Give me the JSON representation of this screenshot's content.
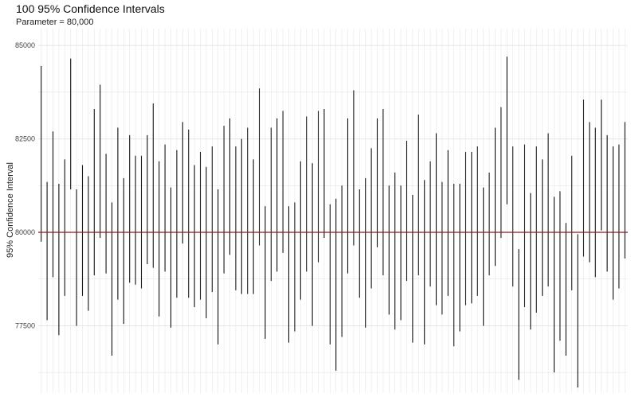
{
  "chart_data": {
    "type": "errorbar",
    "title": "100 95% Confidence Intervals",
    "subtitle": "Parameter = 80,000",
    "ylabel": "95% Confidence Interval",
    "xlabel": "",
    "parameter": 80000,
    "ylim": [
      75700,
      85450
    ],
    "yticks": [
      77500,
      80000,
      82500,
      85000
    ],
    "ytick_labels": [
      "77500",
      "80000",
      "82500",
      "85000"
    ],
    "grid": true,
    "colors": {
      "interval": "#111111",
      "reference": "#8b1a1a",
      "grid": "#e6e6e6"
    },
    "intervals": [
      [
        79750,
        84450
      ],
      [
        77650,
        81350
      ],
      [
        78800,
        82700
      ],
      [
        77250,
        81300
      ],
      [
        78300,
        81950
      ],
      [
        81150,
        84650
      ],
      [
        77500,
        81150
      ],
      [
        78300,
        81800
      ],
      [
        77900,
        81500
      ],
      [
        78850,
        83300
      ],
      [
        79850,
        83950
      ],
      [
        78900,
        82100
      ],
      [
        76700,
        80800
      ],
      [
        78200,
        82800
      ],
      [
        77550,
        81450
      ],
      [
        78650,
        82600
      ],
      [
        78600,
        82050
      ],
      [
        78500,
        82050
      ],
      [
        79150,
        82600
      ],
      [
        79050,
        83450
      ],
      [
        77750,
        81900
      ],
      [
        78950,
        82350
      ],
      [
        77450,
        81200
      ],
      [
        78250,
        82200
      ],
      [
        79700,
        82950
      ],
      [
        78250,
        82750
      ],
      [
        78000,
        81800
      ],
      [
        78200,
        82150
      ],
      [
        77700,
        81750
      ],
      [
        78400,
        82300
      ],
      [
        77000,
        81150
      ],
      [
        78900,
        82850
      ],
      [
        79400,
        83050
      ],
      [
        78450,
        82300
      ],
      [
        78350,
        82500
      ],
      [
        78350,
        82800
      ],
      [
        78350,
        81950
      ],
      [
        79650,
        83850
      ],
      [
        77150,
        80700
      ],
      [
        78700,
        82800
      ],
      [
        78950,
        83050
      ],
      [
        79450,
        83250
      ],
      [
        77050,
        80700
      ],
      [
        77350,
        80800
      ],
      [
        78200,
        81900
      ],
      [
        78950,
        83100
      ],
      [
        77500,
        81850
      ],
      [
        79200,
        83250
      ],
      [
        79850,
        83300
      ],
      [
        77000,
        80750
      ],
      [
        76300,
        80900
      ],
      [
        77200,
        81250
      ],
      [
        78900,
        83050
      ],
      [
        79650,
        83800
      ],
      [
        78250,
        81150
      ],
      [
        77450,
        81450
      ],
      [
        78500,
        82250
      ],
      [
        79600,
        83050
      ],
      [
        78850,
        83300
      ],
      [
        77800,
        81250
      ],
      [
        77400,
        81600
      ],
      [
        77650,
        81250
      ],
      [
        78700,
        82450
      ],
      [
        77050,
        81000
      ],
      [
        78850,
        83150
      ],
      [
        77000,
        81400
      ],
      [
        78550,
        81900
      ],
      [
        78050,
        82650
      ],
      [
        77800,
        81350
      ],
      [
        78300,
        82200
      ],
      [
        76950,
        81300
      ],
      [
        77350,
        81300
      ],
      [
        78050,
        82150
      ],
      [
        78100,
        82150
      ],
      [
        78300,
        82300
      ],
      [
        77500,
        81200
      ],
      [
        78850,
        81600
      ],
      [
        79100,
        82800
      ],
      [
        79850,
        83350
      ],
      [
        80750,
        84700
      ],
      [
        78550,
        82300
      ],
      [
        76050,
        79550
      ],
      [
        78000,
        82350
      ],
      [
        77400,
        81050
      ],
      [
        77850,
        82300
      ],
      [
        78300,
        81950
      ],
      [
        78550,
        82650
      ],
      [
        76250,
        80950
      ],
      [
        77100,
        81100
      ],
      [
        76700,
        80250
      ],
      [
        78450,
        82050
      ],
      [
        75850,
        79950
      ],
      [
        79350,
        83550
      ],
      [
        79200,
        82950
      ],
      [
        78800,
        82800
      ],
      [
        80050,
        83550
      ],
      [
        78950,
        82600
      ],
      [
        78200,
        82300
      ],
      [
        78500,
        82350
      ],
      [
        79300,
        82950
      ]
    ]
  }
}
